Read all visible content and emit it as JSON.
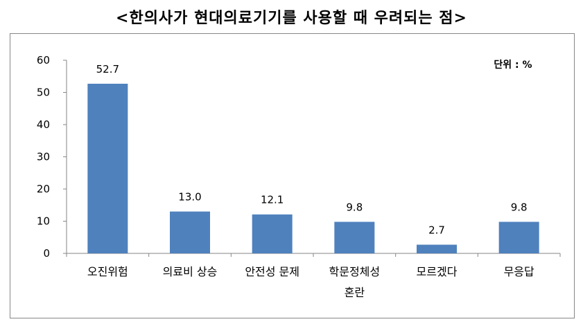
{
  "title": "<한의사가 현대의료기기를 사용할 때 우려되는 점>",
  "chart_data": {
    "type": "bar",
    "title": "<한의사가 현대의료기기를 사용할 때 우려되는 점>",
    "unit_label": "단위 : %",
    "categories": [
      [
        "오진위험"
      ],
      [
        "의료비 상승"
      ],
      [
        "안전성 문제"
      ],
      [
        "학문정체성",
        "혼란"
      ],
      [
        "모르겠다"
      ],
      [
        "무응답"
      ]
    ],
    "values": [
      52.7,
      13.0,
      12.1,
      9.8,
      2.7,
      9.8
    ],
    "value_labels": [
      "52.7",
      "13.0",
      "12.1",
      "9.8",
      "2.7",
      "9.8"
    ],
    "yticks": [
      "0",
      "10",
      "20",
      "30",
      "40",
      "50",
      "60"
    ],
    "ylim": [
      0,
      60
    ],
    "grid": false,
    "bar_color": "#4F81BD"
  }
}
